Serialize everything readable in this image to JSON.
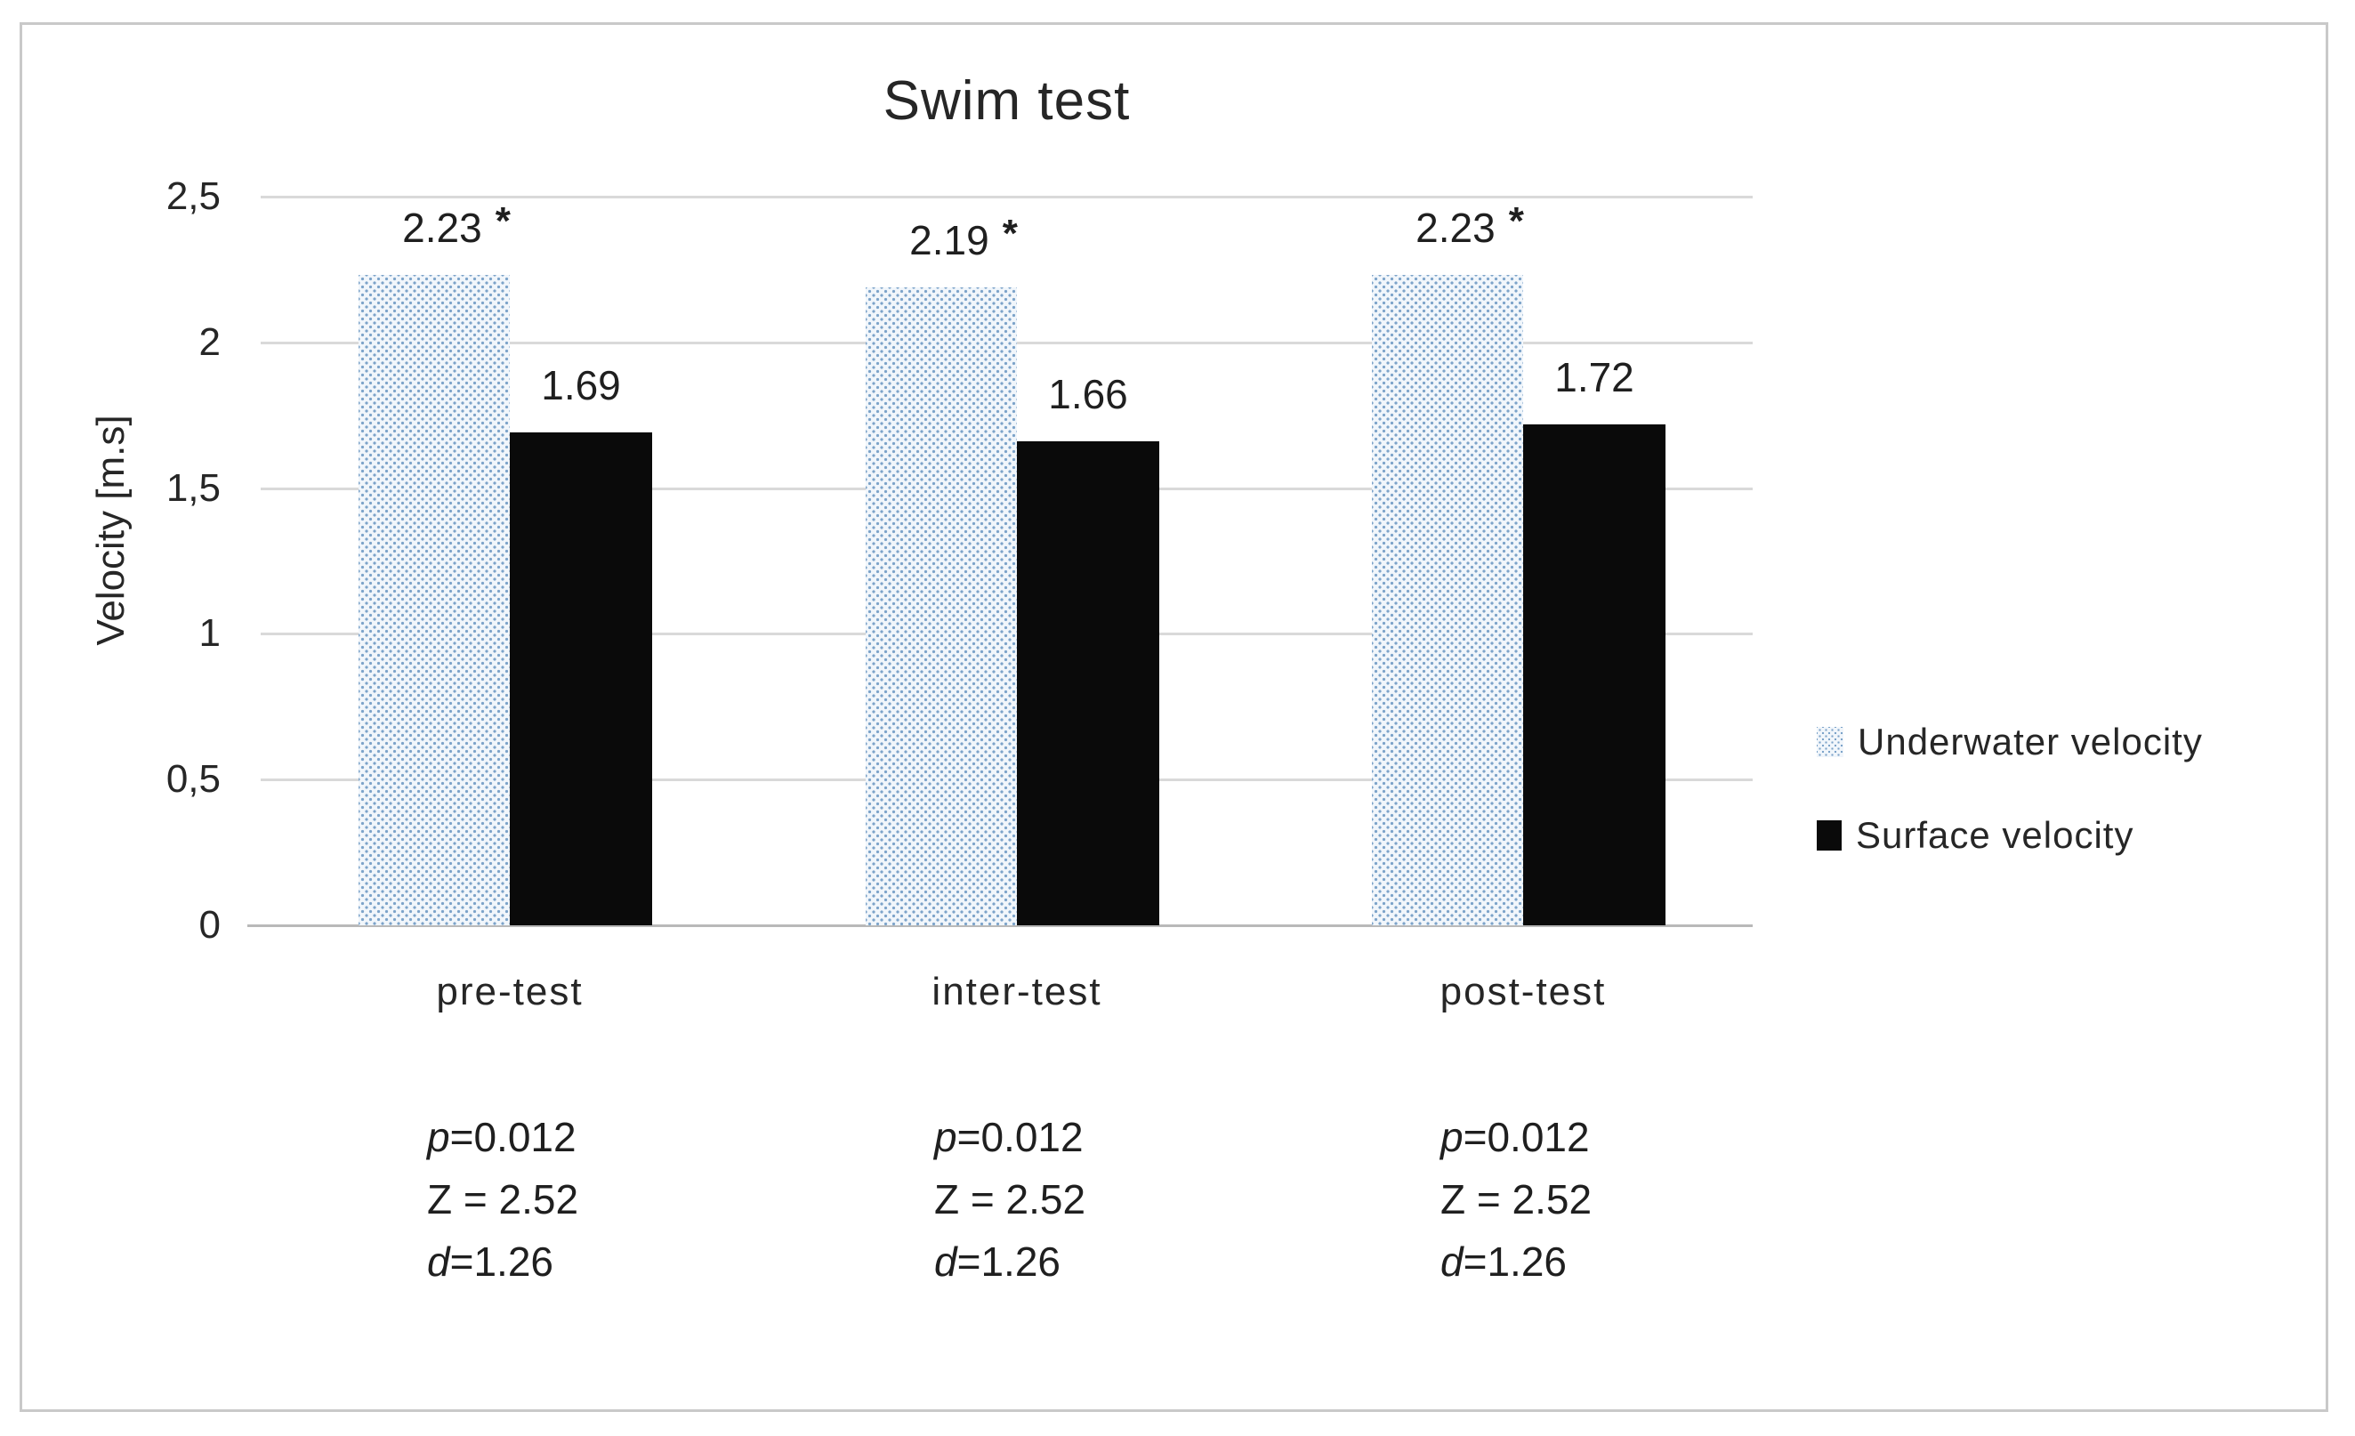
{
  "title": "Swim test",
  "y_axis": {
    "label": "Velocity [m.s]",
    "ticks": [
      "2,5",
      "2",
      "1,5",
      "1",
      "0,5",
      "0"
    ],
    "tick_values": [
      2.5,
      2,
      1.5,
      1,
      0.5,
      0
    ]
  },
  "legend": [
    {
      "name": "Underwater velocity",
      "swatch": "dotted-blue"
    },
    {
      "name": "Surface velocity",
      "swatch": "solid-black"
    }
  ],
  "colors": {
    "dot_blue": "#7ca3c9",
    "dot_bar_background": "#f1f6fb",
    "black_bar": "#0a0a0a",
    "gridline": "#d9d9d9",
    "axis_line": "#b9b9b9",
    "frame_border": "#c9c9c9",
    "text": "#1f1f1f"
  },
  "chart_data": {
    "type": "bar",
    "title": "Swim test",
    "xlabel": "",
    "ylabel": "Velocity [m.s]",
    "ylim": [
      0,
      2.5
    ],
    "ytick_step": 0.5,
    "grid": true,
    "legend_position": "right",
    "categories": [
      "pre-test",
      "inter-test",
      "post-test"
    ],
    "series": [
      {
        "name": "Underwater velocity",
        "style": "dotted-blue",
        "values": [
          2.23,
          2.19,
          2.23
        ],
        "labels": [
          "2.23 *",
          "2.19 *",
          "2.23 *"
        ]
      },
      {
        "name": "Surface velocity",
        "style": "solid-black",
        "values": [
          1.69,
          1.66,
          1.72
        ],
        "labels": [
          "1.69",
          "1.66",
          "1.72"
        ]
      }
    ],
    "annotations": [
      {
        "category": "pre-test",
        "lines": [
          "p=0.012",
          "Z = 2.52",
          "d=1.26"
        ]
      },
      {
        "category": "inter-test",
        "lines": [
          "p=0.012",
          "Z = 2.52",
          "d=1.26"
        ]
      },
      {
        "category": "post-test",
        "lines": [
          "p=0.012",
          "Z = 2.52",
          "d=1.26"
        ]
      }
    ]
  }
}
